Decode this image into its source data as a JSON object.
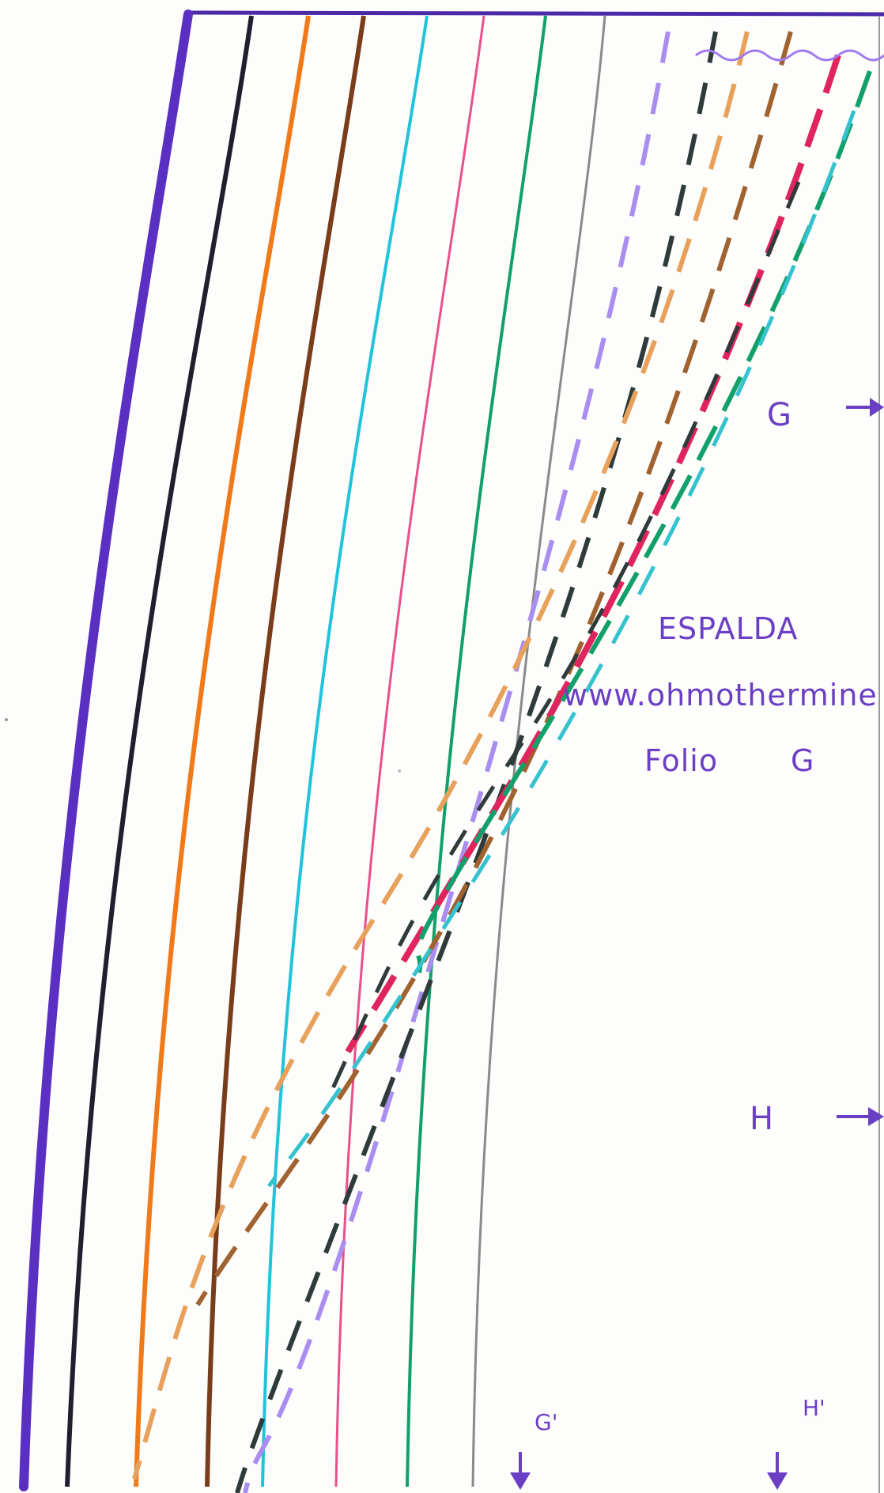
{
  "pattern": {
    "piece_label": "ESPALDA",
    "website": "www.ohmothermine",
    "folio_label": "Folio",
    "folio_value": "G",
    "notch_g_label": "G",
    "notch_h_label": "H",
    "notch_g_prime_label": "G'",
    "notch_h_prime_label": "H'"
  },
  "size_lines": [
    {
      "color": "#5a2fc2",
      "style": "solid"
    },
    {
      "color": "#1f1f2e",
      "style": "solid"
    },
    {
      "color": "#f07a1a",
      "style": "solid"
    },
    {
      "color": "#7a3d1c",
      "style": "solid"
    },
    {
      "color": "#20c4d8",
      "style": "solid"
    },
    {
      "color": "#e8508a",
      "style": "solid"
    },
    {
      "color": "#12a06a",
      "style": "solid"
    },
    {
      "color": "#8a8a8a",
      "style": "solid"
    }
  ],
  "dashed_lines": [
    {
      "color": "#a98ef0"
    },
    {
      "color": "#2f3a3a"
    },
    {
      "color": "#e8a15a"
    },
    {
      "color": "#a0622e"
    },
    {
      "color": "#e0245e"
    },
    {
      "color": "#12a06a"
    },
    {
      "color": "#35c2cf"
    }
  ],
  "accent_color": "#6b3fc4"
}
